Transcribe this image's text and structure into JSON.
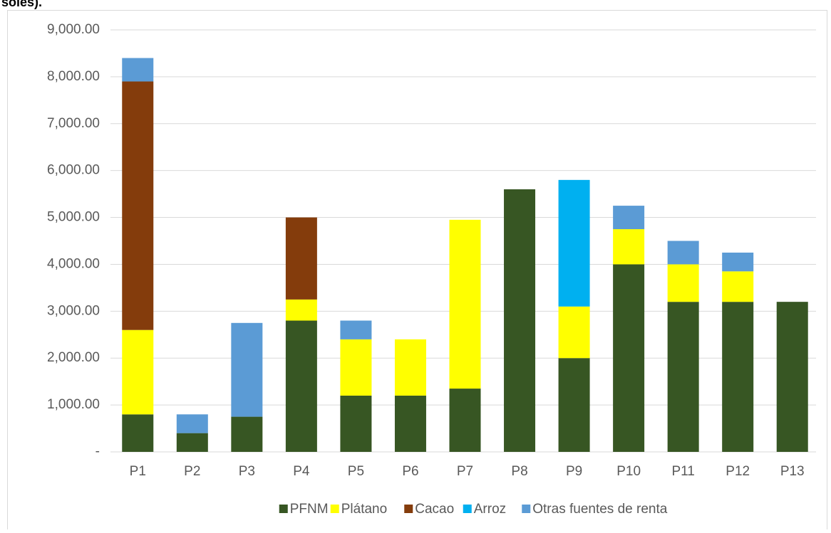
{
  "chart_data": {
    "type": "stacked_bar",
    "title": "soles).",
    "categories": [
      "P1",
      "P2",
      "P3",
      "P4",
      "P5",
      "P6",
      "P7",
      "P8",
      "P9",
      "P10",
      "P11",
      "P12",
      "P13"
    ],
    "series": [
      {
        "name": "PFNM",
        "color": "#375623",
        "values": [
          800,
          400,
          750,
          2800,
          1200,
          1200,
          1350,
          5600,
          2000,
          4000,
          3200,
          3200,
          3200
        ]
      },
      {
        "name": "Plátano",
        "color": "#ffff00",
        "values": [
          1800,
          null,
          null,
          450,
          1200,
          1200,
          3600,
          null,
          1100,
          750,
          800,
          650,
          null
        ]
      },
      {
        "name": "Cacao",
        "color": "#843c0c",
        "values": [
          5300,
          null,
          null,
          1750,
          null,
          null,
          null,
          null,
          null,
          null,
          null,
          null,
          null
        ]
      },
      {
        "name": "Arroz",
        "color": "#00b0f0",
        "values": [
          null,
          null,
          null,
          null,
          null,
          null,
          null,
          null,
          2700,
          null,
          null,
          null,
          null
        ]
      },
      {
        "name": "Otras fuentes de renta",
        "color": "#5b9bd5",
        "values": [
          500,
          400,
          2000,
          null,
          400,
          null,
          null,
          null,
          null,
          500,
          500,
          400,
          null
        ]
      }
    ],
    "ylim": [
      0,
      9000
    ],
    "yticks": [
      {
        "value": 0,
        "label": "-"
      },
      {
        "value": 1000,
        "label": "1,000.00"
      },
      {
        "value": 2000,
        "label": "2,000.00"
      },
      {
        "value": 3000,
        "label": "3,000.00"
      },
      {
        "value": 4000,
        "label": "4,000.00"
      },
      {
        "value": 5000,
        "label": "5,000.00"
      },
      {
        "value": 6000,
        "label": "6,000.00"
      },
      {
        "value": 7000,
        "label": "7,000.00"
      },
      {
        "value": 8000,
        "label": "8,000.00"
      },
      {
        "value": 9000,
        "label": "9,000.00"
      }
    ],
    "grid": true,
    "legend": "bottom"
  }
}
